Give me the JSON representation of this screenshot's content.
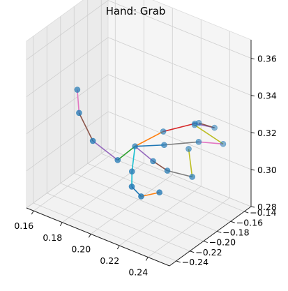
{
  "chart_data": {
    "type": "scatter",
    "projection": "3d",
    "title": "Hand: Grab",
    "xlabel": "",
    "ylabel": "",
    "zlabel": "",
    "grid": true,
    "xlim": [
      0.155,
      0.255
    ],
    "ylim": [
      -0.25,
      -0.13
    ],
    "zlim": [
      0.28,
      0.37
    ],
    "x_ticks": [
      "0.16",
      "0.18",
      "0.20",
      "0.22",
      "0.24"
    ],
    "y_ticks": [
      "−0.24",
      "−0.22",
      "−0.20",
      "−0.18",
      "−0.16",
      "−0.14"
    ],
    "z_ticks": [
      "0.28",
      "0.30",
      "0.32",
      "0.34",
      "0.36"
    ],
    "point_color": "#1f77b4",
    "joints": [
      {
        "name": "wrist",
        "x": 0.2,
        "y": -0.185,
        "z": 0.31
      },
      {
        "name": "thumb_cmc",
        "x": 0.195,
        "y": -0.2,
        "z": 0.305
      },
      {
        "name": "thumb_mcp",
        "x": 0.18,
        "y": -0.205,
        "z": 0.312
      },
      {
        "name": "thumb_ip",
        "x": 0.168,
        "y": -0.2,
        "z": 0.322
      },
      {
        "name": "thumb_tip",
        "x": 0.162,
        "y": -0.19,
        "z": 0.33
      },
      {
        "name": "index_mcp",
        "x": 0.215,
        "y": -0.175,
        "z": 0.32
      },
      {
        "name": "index_pip",
        "x": 0.23,
        "y": -0.16,
        "z": 0.325
      },
      {
        "name": "index_dip",
        "x": 0.238,
        "y": -0.148,
        "z": 0.322
      },
      {
        "name": "index_tip",
        "x": 0.228,
        "y": -0.15,
        "z": 0.322
      },
      {
        "name": "middle_mcp",
        "x": 0.218,
        "y": -0.18,
        "z": 0.315
      },
      {
        "name": "middle_pip",
        "x": 0.235,
        "y": -0.165,
        "z": 0.318
      },
      {
        "name": "middle_dip",
        "x": 0.245,
        "y": -0.15,
        "z": 0.316
      },
      {
        "name": "middle_tip",
        "x": 0.225,
        "y": -0.15,
        "z": 0.32
      },
      {
        "name": "ring_mcp",
        "x": 0.215,
        "y": -0.19,
        "z": 0.308
      },
      {
        "name": "ring_pip",
        "x": 0.225,
        "y": -0.19,
        "z": 0.306
      },
      {
        "name": "ring_dip",
        "x": 0.24,
        "y": -0.185,
        "z": 0.306
      },
      {
        "name": "ring_tip",
        "x": 0.228,
        "y": -0.165,
        "z": 0.312
      },
      {
        "name": "pinky_mcp",
        "x": 0.205,
        "y": -0.2,
        "z": 0.302
      },
      {
        "name": "pinky_pip",
        "x": 0.212,
        "y": -0.215,
        "z": 0.3
      },
      {
        "name": "pinky_dip",
        "x": 0.22,
        "y": -0.218,
        "z": 0.298
      },
      {
        "name": "pinky_tip",
        "x": 0.228,
        "y": -0.208,
        "z": 0.3
      }
    ],
    "bones": [
      {
        "a": 0,
        "b": 1,
        "color": "#2ca02c"
      },
      {
        "a": 1,
        "b": 2,
        "color": "#9467bd"
      },
      {
        "a": 2,
        "b": 3,
        "color": "#8c564b"
      },
      {
        "a": 3,
        "b": 4,
        "color": "#e377c2"
      },
      {
        "a": 0,
        "b": 5,
        "color": "#ff7f0e"
      },
      {
        "a": 5,
        "b": 6,
        "color": "#d62728"
      },
      {
        "a": 6,
        "b": 7,
        "color": "#9467bd"
      },
      {
        "a": 7,
        "b": 8,
        "color": "#8c564b"
      },
      {
        "a": 0,
        "b": 9,
        "color": "#1f77b4"
      },
      {
        "a": 9,
        "b": 10,
        "color": "#7f7f7f"
      },
      {
        "a": 10,
        "b": 11,
        "color": "#e377c2"
      },
      {
        "a": 11,
        "b": 12,
        "color": "#bcbd22"
      },
      {
        "a": 0,
        "b": 13,
        "color": "#9467bd"
      },
      {
        "a": 13,
        "b": 14,
        "color": "#8c564b"
      },
      {
        "a": 14,
        "b": 15,
        "color": "#7f7f7f"
      },
      {
        "a": 15,
        "b": 16,
        "color": "#bcbd22"
      },
      {
        "a": 0,
        "b": 17,
        "color": "#17becf"
      },
      {
        "a": 17,
        "b": 18,
        "color": "#17becf"
      },
      {
        "a": 18,
        "b": 19,
        "color": "#1f77b4"
      },
      {
        "a": 19,
        "b": 20,
        "color": "#ff7f0e"
      }
    ]
  }
}
